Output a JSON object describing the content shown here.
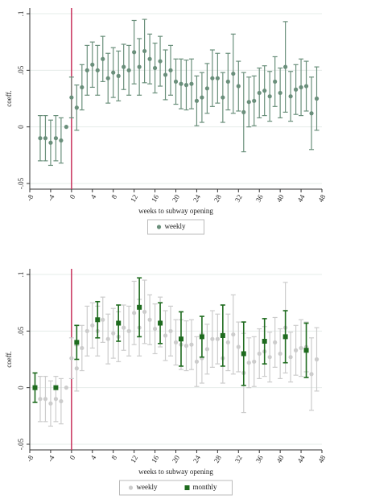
{
  "chart_data": [
    {
      "type": "errorbar",
      "x_label": "weeks to subway opening",
      "y_label": "coeff.",
      "xlim": [
        -8,
        48
      ],
      "xticks": [
        -8,
        -4,
        0,
        4,
        8,
        12,
        16,
        20,
        24,
        28,
        32,
        36,
        40,
        44,
        48
      ],
      "ylim": [
        -0.055,
        0.105
      ],
      "yticks": [
        {
          "value": -0.05,
          "label": "-.05"
        },
        {
          "value": 0,
          "label": "0"
        },
        {
          "value": 0.05,
          "label": ".05"
        },
        {
          "value": 0.1,
          "label": ".1"
        }
      ],
      "grid": true,
      "event_x": 0,
      "event_color": "#c8305a",
      "legend": "bottom",
      "series": [
        {
          "name": "weekly",
          "color": "#6a8f7b",
          "marker": "circle",
          "x": [
            -6,
            -5,
            -4,
            -3,
            -2,
            -1,
            0,
            1,
            2,
            3,
            4,
            5,
            6,
            7,
            8,
            9,
            10,
            11,
            12,
            13,
            14,
            15,
            16,
            17,
            18,
            19,
            20,
            21,
            22,
            23,
            24,
            25,
            26,
            27,
            28,
            29,
            30,
            31,
            32,
            33,
            34,
            35,
            36,
            37,
            38,
            39,
            40,
            41,
            42,
            43,
            44,
            45,
            46,
            47
          ],
          "values": [
            -0.01,
            -0.01,
            -0.014,
            -0.01,
            -0.012,
            0,
            0.026,
            0.017,
            0.035,
            0.05,
            0.055,
            0.05,
            0.06,
            0.043,
            0.048,
            0.045,
            0.053,
            0.05,
            0.066,
            0.053,
            0.067,
            0.06,
            0.052,
            0.058,
            0.046,
            0.05,
            0.04,
            0.038,
            0.037,
            0.038,
            0.023,
            0.026,
            0.034,
            0.043,
            0.043,
            0.026,
            0.04,
            0.047,
            0.036,
            0.013,
            0.022,
            0.023,
            0.03,
            0.032,
            0.027,
            0.04,
            0.03,
            0.053,
            0.027,
            0.033,
            0.035,
            0.036,
            0.012,
            0.025
          ],
          "errors": [
            0.02,
            0.02,
            0.02,
            0.02,
            0.02,
            null,
            0.018,
            0.02,
            0.02,
            0.022,
            0.02,
            0.022,
            0.02,
            0.022,
            0.022,
            0.022,
            0.02,
            0.022,
            0.028,
            0.025,
            0.028,
            0.022,
            0.022,
            0.022,
            0.022,
            0.022,
            0.02,
            0.022,
            0.022,
            0.022,
            0.022,
            0.022,
            0.022,
            0.025,
            0.022,
            0.022,
            0.025,
            0.035,
            0.022,
            0.035,
            0.022,
            0.022,
            0.022,
            0.022,
            0.022,
            0.022,
            0.022,
            0.04,
            0.022,
            0.022,
            0.025,
            0.022,
            0.032,
            0.028
          ]
        }
      ]
    },
    {
      "type": "errorbar",
      "x_label": "weeks to subway opening",
      "y_label": "coeff.",
      "xlim": [
        -8,
        48
      ],
      "xticks": [
        -8,
        -4,
        0,
        4,
        8,
        12,
        16,
        20,
        24,
        28,
        32,
        36,
        40,
        44,
        48
      ],
      "ylim": [
        -0.055,
        0.105
      ],
      "yticks": [
        {
          "value": -0.05,
          "label": "-.05"
        },
        {
          "value": 0,
          "label": "0"
        },
        {
          "value": 0.05,
          "label": ".05"
        },
        {
          "value": 0.1,
          "label": ".1"
        }
      ],
      "grid": true,
      "event_x": 0,
      "event_color": "#c8305a",
      "legend": "bottom",
      "series": [
        {
          "name": "weekly",
          "color": "#cccccc",
          "marker": "circle",
          "x": [
            -6,
            -5,
            -4,
            -3,
            -2,
            -1,
            0,
            1,
            2,
            3,
            4,
            5,
            6,
            7,
            8,
            9,
            10,
            11,
            12,
            13,
            14,
            15,
            16,
            17,
            18,
            19,
            20,
            21,
            22,
            23,
            24,
            25,
            26,
            27,
            28,
            29,
            30,
            31,
            32,
            33,
            34,
            35,
            36,
            37,
            38,
            39,
            40,
            41,
            42,
            43,
            44,
            45,
            46,
            47
          ],
          "values": [
            -0.01,
            -0.01,
            -0.014,
            -0.01,
            -0.012,
            0,
            0.026,
            0.017,
            0.035,
            0.05,
            0.055,
            0.05,
            0.06,
            0.043,
            0.048,
            0.045,
            0.053,
            0.05,
            0.066,
            0.053,
            0.067,
            0.06,
            0.052,
            0.058,
            0.046,
            0.05,
            0.04,
            0.038,
            0.037,
            0.038,
            0.023,
            0.026,
            0.034,
            0.043,
            0.043,
            0.026,
            0.04,
            0.047,
            0.036,
            0.013,
            0.022,
            0.023,
            0.03,
            0.032,
            0.027,
            0.04,
            0.03,
            0.053,
            0.027,
            0.033,
            0.035,
            0.036,
            0.012,
            0.025
          ],
          "errors": [
            0.02,
            0.02,
            0.02,
            0.02,
            0.02,
            null,
            0.018,
            0.02,
            0.02,
            0.022,
            0.02,
            0.022,
            0.02,
            0.022,
            0.022,
            0.022,
            0.02,
            0.022,
            0.028,
            0.025,
            0.028,
            0.022,
            0.022,
            0.022,
            0.022,
            0.022,
            0.02,
            0.022,
            0.022,
            0.022,
            0.022,
            0.022,
            0.022,
            0.025,
            0.022,
            0.022,
            0.025,
            0.035,
            0.022,
            0.035,
            0.022,
            0.022,
            0.022,
            0.022,
            0.022,
            0.022,
            0.022,
            0.04,
            0.022,
            0.022,
            0.025,
            0.022,
            0.032,
            0.028
          ]
        },
        {
          "name": "monthly",
          "color": "#1e6b1e",
          "marker": "square",
          "x": [
            -7,
            -3,
            1,
            5,
            9,
            13,
            17,
            21,
            25,
            29,
            33,
            37,
            41,
            45
          ],
          "values": [
            0,
            0,
            0.04,
            0.06,
            0.057,
            0.071,
            0.057,
            0.043,
            0.045,
            0.046,
            0.03,
            0.041,
            0.045,
            0.033
          ],
          "errors": [
            0.013,
            null,
            0.015,
            0.016,
            0.016,
            0.026,
            0.018,
            0.024,
            0.018,
            0.027,
            0.028,
            0.02,
            0.023,
            0.024
          ]
        }
      ]
    }
  ]
}
